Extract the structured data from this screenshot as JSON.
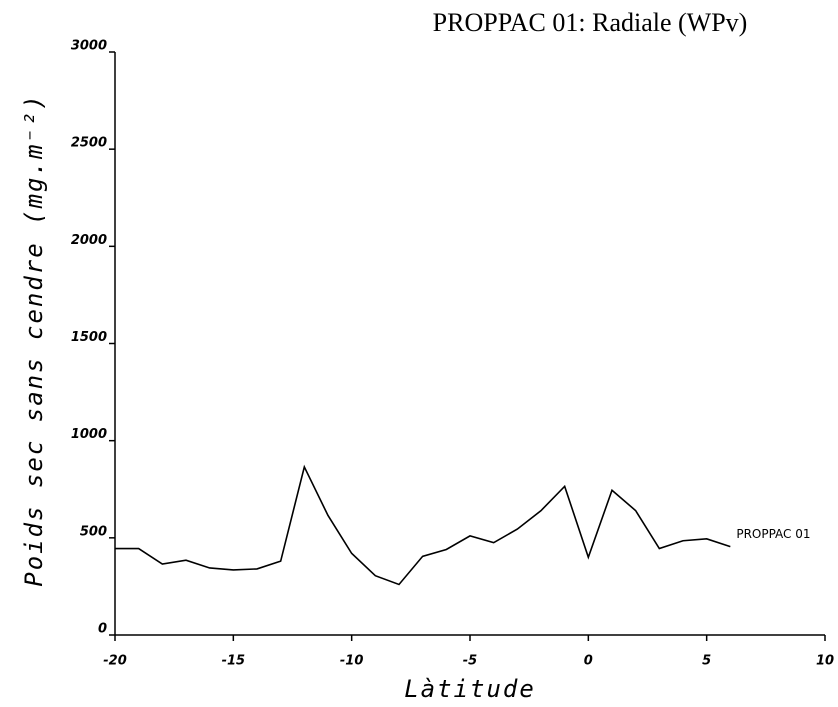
{
  "chart_data": {
    "type": "line",
    "title": "PROPPAC 01: Radiale (WPv)",
    "xlabel": "Làtitude",
    "ylabel": "Poids sec sans cendre (mg.m⁻²)",
    "x": [
      -20,
      -19,
      -18,
      -17,
      -16,
      -15,
      -14,
      -13,
      -12,
      -11,
      -10,
      -9,
      -8,
      -7,
      -6,
      -5,
      -4,
      -3,
      -2,
      -1,
      0,
      1,
      2,
      3,
      4,
      5,
      6
    ],
    "series": [
      {
        "name": "PROPPAC 01",
        "color": "#000000",
        "values": [
          445,
          445,
          365,
          385,
          345,
          335,
          340,
          380,
          865,
          615,
          420,
          305,
          260,
          405,
          440,
          510,
          475,
          545,
          640,
          765,
          400,
          745,
          640,
          445,
          485,
          495,
          455
        ]
      }
    ],
    "xlim": [
      -20,
      10
    ],
    "xticks": [
      -20,
      -15,
      -10,
      -5,
      0,
      5,
      10
    ],
    "ylim": [
      0,
      3000
    ],
    "yticks": [
      0,
      500,
      1000,
      1500,
      2000,
      2500,
      3000
    ]
  }
}
